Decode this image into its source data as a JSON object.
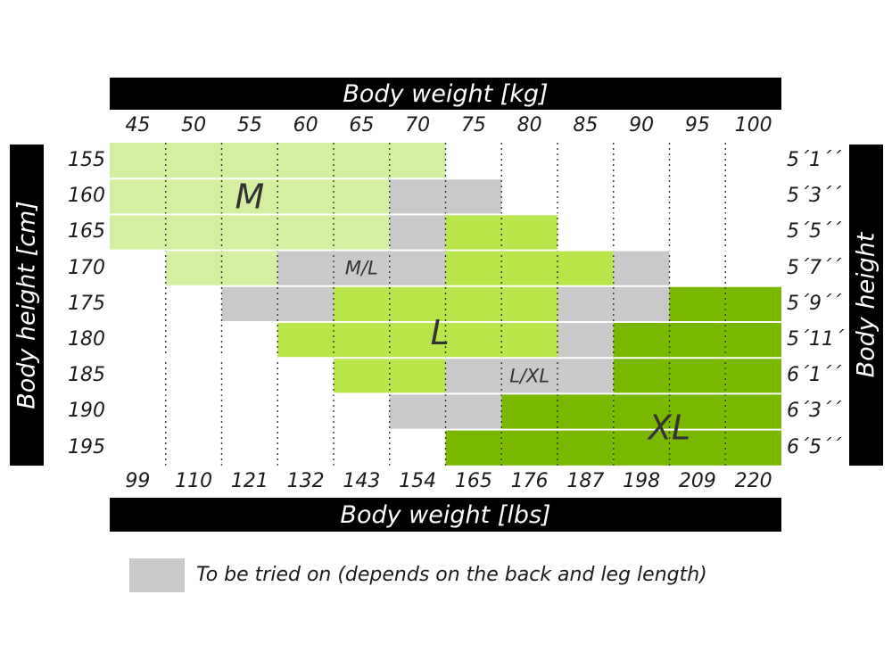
{
  "chart_data": {
    "type": "heatmap",
    "title": "",
    "top_axis_label": "Body weight [kg]",
    "bottom_axis_label": "Body weight [lbs]",
    "left_axis_label": "Body height [cm]",
    "right_axis_label": "Body height",
    "x_kg": [
      "45",
      "50",
      "55",
      "60",
      "65",
      "70",
      "75",
      "80",
      "85",
      "90",
      "95",
      "100"
    ],
    "x_lbs": [
      "99",
      "110",
      "121",
      "132",
      "143",
      "154",
      "165",
      "176",
      "187",
      "198",
      "209",
      "220"
    ],
    "y_cm": [
      "155",
      "160",
      "165",
      "170",
      "175",
      "180",
      "185",
      "190",
      "195"
    ],
    "y_ft": [
      "5´1´´",
      "5´3´´",
      "5´5´´",
      "5´7´´",
      "5´9´´",
      "5´11´´",
      "6´1´´",
      "6´3´´",
      "6´5´´"
    ],
    "colors": {
      "M": "#d4eea2",
      "L": "#b8e64a",
      "XL": "#7ab800",
      "G": "#c9c9c9",
      "empty": "#ffffff"
    },
    "grid": [
      [
        "M",
        "M",
        "M",
        "M",
        "M",
        "M",
        "",
        "",
        "",
        "",
        "",
        ""
      ],
      [
        "M",
        "M",
        "M",
        "M",
        "M",
        "G",
        "G",
        "",
        "",
        "",
        "",
        ""
      ],
      [
        "M",
        "M",
        "M",
        "M",
        "M",
        "G",
        "L",
        "L",
        "",
        "",
        "",
        ""
      ],
      [
        "",
        "M",
        "M",
        "G",
        "G",
        "G",
        "L",
        "L",
        "L",
        "G",
        "",
        ""
      ],
      [
        "",
        "",
        "G",
        "G",
        "L",
        "L",
        "L",
        "L",
        "G",
        "G",
        "XL",
        "XL"
      ],
      [
        "",
        "",
        "",
        "L",
        "L",
        "L",
        "L",
        "L",
        "G",
        "XL",
        "XL",
        "XL"
      ],
      [
        "",
        "",
        "",
        "",
        "L",
        "L",
        "G",
        "G",
        "G",
        "XL",
        "XL",
        "XL"
      ],
      [
        "",
        "",
        "",
        "",
        "",
        "G",
        "G",
        "XL",
        "XL",
        "XL",
        "XL",
        "XL"
      ],
      [
        "",
        "",
        "",
        "",
        "",
        "",
        "XL",
        "XL",
        "XL",
        "XL",
        "XL",
        "XL"
      ]
    ],
    "region_labels": [
      {
        "text": "M",
        "col": 2.5,
        "row": 1.5
      },
      {
        "text": "M/L",
        "col": 4.5,
        "row": 3.5
      },
      {
        "text": "L",
        "col": 5.9,
        "row": 5.3
      },
      {
        "text": "L/XL",
        "col": 7.5,
        "row": 6.5
      },
      {
        "text": "XL",
        "col": 10.0,
        "row": 7.95
      }
    ],
    "legend": [
      {
        "key": "G",
        "label": "To be tried on (depends on the back and leg length)"
      }
    ]
  }
}
